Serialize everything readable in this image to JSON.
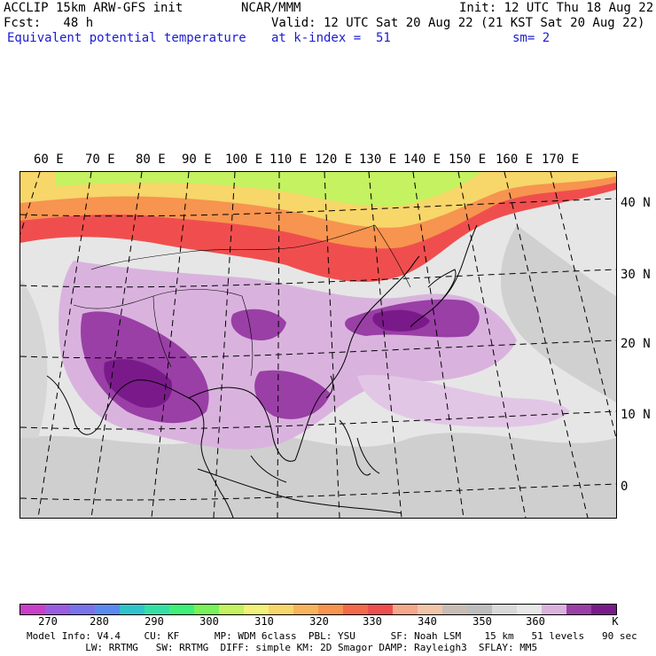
{
  "header": {
    "model_line": "ACCLIP 15km ARW-GFS init",
    "center": "NCAR/MMM",
    "init": "Init: 12 UTC Thu 18 Aug 22",
    "fcst": "Fcst:   48 h",
    "valid": "Valid: 12 UTC Sat 20 Aug 22 (21 KST Sat 20 Aug 22)",
    "field": "Equivalent potential temperature",
    "level": "at k-index =  51",
    "smooth": "sm= 2"
  },
  "map": {
    "lon_labels": [
      "60 E",
      "70 E",
      "80 E",
      "90 E",
      "100 E",
      "110 E",
      "120 E",
      "130 E",
      "140 E",
      "150 E",
      "160 E",
      "170 E"
    ],
    "lat_labels": [
      "40 N",
      "30 N",
      "20 N",
      "10 N",
      "0"
    ],
    "colors": {
      "purple_dark": "#7a1a8a",
      "purple_mid": "#9a3fa6",
      "lilac": "#d9b3de",
      "grey_light": "#d9d9d9",
      "grey_mid": "#bdbdbd",
      "white": "#ffffff",
      "red": "#f04e4e",
      "orange": "#f7944f",
      "yellow": "#f2f27a",
      "green": "#b8f271"
    }
  },
  "colorbar": {
    "colors": [
      "#c83fc8",
      "#9a5ce0",
      "#7a72ea",
      "#5a8af0",
      "#2ec4cc",
      "#32e0a6",
      "#3ef07a",
      "#7af25a",
      "#c4f260",
      "#f2f27a",
      "#f7d66a",
      "#f7b45a",
      "#f7944f",
      "#f46a4a",
      "#f04e4e",
      "#f4a88a",
      "#f2c4a8",
      "#c8bdb4",
      "#bdbdbd",
      "#d9d9d9",
      "#e8e8e8",
      "#d9b3de",
      "#9a3fa6",
      "#7a1a8a"
    ],
    "ticks": [
      "270",
      "280",
      "290",
      "300",
      "310",
      "320",
      "330",
      "340",
      "350",
      "360"
    ],
    "unit": "K"
  },
  "footer": {
    "line1": "Model Info: V4.4    CU: KF      MP: WDM 6class  PBL: YSU      SF: Noah LSM    15 km   51 levels   90 sec",
    "line2": "          LW: RRTMG   SW: RRTMG  DIFF: simple KM: 2D Smagor DAMP: Rayleigh3  SFLAY: MM5"
  }
}
